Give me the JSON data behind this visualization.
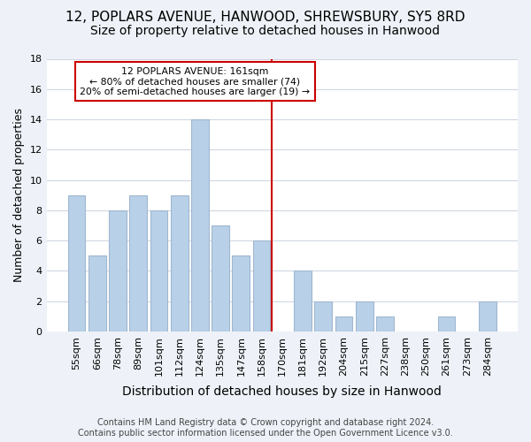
{
  "title": "12, POPLARS AVENUE, HANWOOD, SHREWSBURY, SY5 8RD",
  "subtitle": "Size of property relative to detached houses in Hanwood",
  "xlabel": "Distribution of detached houses by size in Hanwood",
  "ylabel": "Number of detached properties",
  "categories": [
    "55sqm",
    "66sqm",
    "78sqm",
    "89sqm",
    "101sqm",
    "112sqm",
    "124sqm",
    "135sqm",
    "147sqm",
    "158sqm",
    "170sqm",
    "181sqm",
    "192sqm",
    "204sqm",
    "215sqm",
    "227sqm",
    "238sqm",
    "250sqm",
    "261sqm",
    "273sqm",
    "284sqm"
  ],
  "values": [
    9,
    5,
    8,
    9,
    8,
    9,
    14,
    7,
    5,
    6,
    0,
    4,
    2,
    1,
    2,
    1,
    0,
    0,
    1,
    0,
    2
  ],
  "bar_color": "#b8d0e8",
  "bar_edge_color": "#a0b8d0",
  "ylim": [
    0,
    18
  ],
  "yticks": [
    0,
    2,
    4,
    6,
    8,
    10,
    12,
    14,
    16,
    18
  ],
  "property_line_x": 9.5,
  "property_line_color": "#cc0000",
  "annotation_line1": "12 POPLARS AVENUE: 161sqm",
  "annotation_line2": "← 80% of detached houses are smaller (74)",
  "annotation_line3": "20% of semi-detached houses are larger (19) →",
  "annotation_box_color": "#ffffff",
  "annotation_box_edgecolor": "#cc0000",
  "footer_line1": "Contains HM Land Registry data © Crown copyright and database right 2024.",
  "footer_line2": "Contains public sector information licensed under the Open Government Licence v3.0.",
  "background_color": "#eef2f8",
  "plot_background_color": "#ffffff",
  "grid_color": "#ccd4e0",
  "title_fontsize": 11,
  "subtitle_fontsize": 10,
  "xlabel_fontsize": 10,
  "ylabel_fontsize": 9,
  "tick_fontsize": 8,
  "footer_fontsize": 7
}
